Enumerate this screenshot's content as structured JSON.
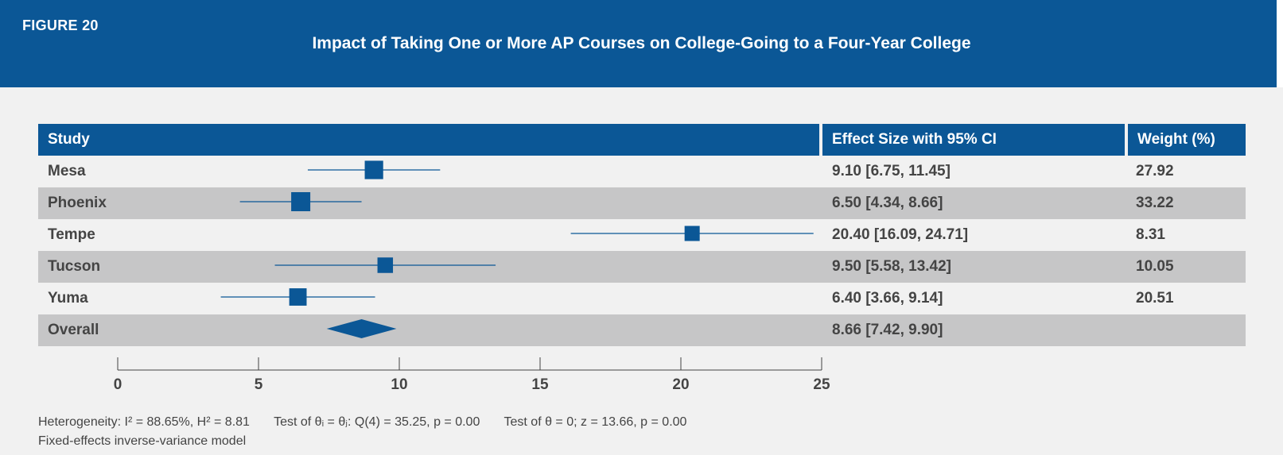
{
  "figure_label": "FIGURE 20",
  "title": "Impact of Taking One or More AP Courses on College-Going to a Four-Year College",
  "columns": {
    "study": "Study",
    "effect": "Effect Size with 95% CI",
    "weight": "Weight (%)"
  },
  "colors": {
    "brand": "#0b5796",
    "shade": "#c6c6c7",
    "background": "#f1f1f1"
  },
  "chart_data": {
    "type": "forest",
    "title": "Impact of Taking One or More AP Courses on College-Going to a Four-Year College",
    "xlim": [
      0,
      25
    ],
    "xticks": [
      0,
      5,
      10,
      15,
      20,
      25
    ],
    "xtick_labels": [
      "0",
      "5",
      "10",
      "15",
      "20",
      "25"
    ],
    "studies": [
      {
        "name": "Mesa",
        "estimate": 9.1,
        "ci": [
          6.75,
          11.45
        ],
        "effect_label": "9.10 [6.75, 11.45]",
        "weight": 27.92,
        "weight_label": "27.92"
      },
      {
        "name": "Phoenix",
        "estimate": 6.5,
        "ci": [
          4.34,
          8.66
        ],
        "effect_label": "6.50 [4.34, 8.66]",
        "weight": 33.22,
        "weight_label": "33.22"
      },
      {
        "name": "Tempe",
        "estimate": 20.4,
        "ci": [
          16.09,
          24.71
        ],
        "effect_label": "20.40 [16.09, 24.71]",
        "weight": 8.31,
        "weight_label": "8.31"
      },
      {
        "name": "Tucson",
        "estimate": 9.5,
        "ci": [
          5.58,
          13.42
        ],
        "effect_label": "9.50 [5.58, 13.42]",
        "weight": 10.05,
        "weight_label": "10.05"
      },
      {
        "name": "Yuma",
        "estimate": 6.4,
        "ci": [
          3.66,
          9.14
        ],
        "effect_label": "6.40 [3.66, 9.14]",
        "weight": 20.51,
        "weight_label": "20.51"
      }
    ],
    "overall": {
      "name": "Overall",
      "estimate": 8.66,
      "ci": [
        7.42,
        9.9
      ],
      "effect_label": "8.66 [7.42, 9.90]"
    }
  },
  "footnotes": {
    "heterogeneity": "Heterogeneity: I² = 88.65%, H² = 8.81",
    "test_theta_i": "Test of θᵢ = θⱼ: Q(4) = 35.25, p = 0.00",
    "test_theta_zero": "Test of θ = 0; z = 13.66, p = 0.00",
    "model": "Fixed-effects inverse-variance model"
  }
}
